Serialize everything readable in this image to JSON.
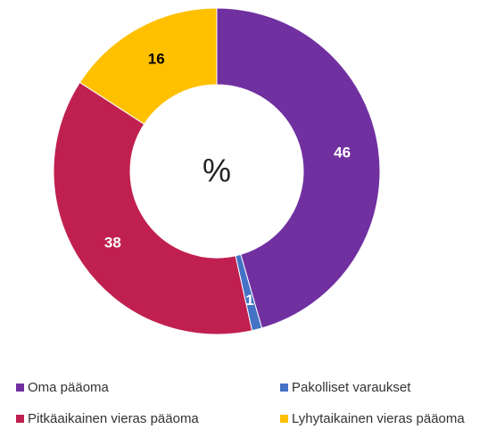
{
  "chart_data": {
    "type": "donut",
    "center_label": "%",
    "categories": [
      "Oma pääoma",
      "Pakolliset varaukset",
      "Pitkäaikainen vieras pääoma",
      "Lyhytaikainen vieras pääoma"
    ],
    "values": [
      46,
      1,
      38,
      16
    ],
    "colors": [
      "#7030a0",
      "#4472c4",
      "#c0204f",
      "#ffc000"
    ],
    "label_colors": [
      "#ffffff",
      "#ffffff",
      "#ffffff",
      "#000000"
    ],
    "legend": "bottom"
  }
}
